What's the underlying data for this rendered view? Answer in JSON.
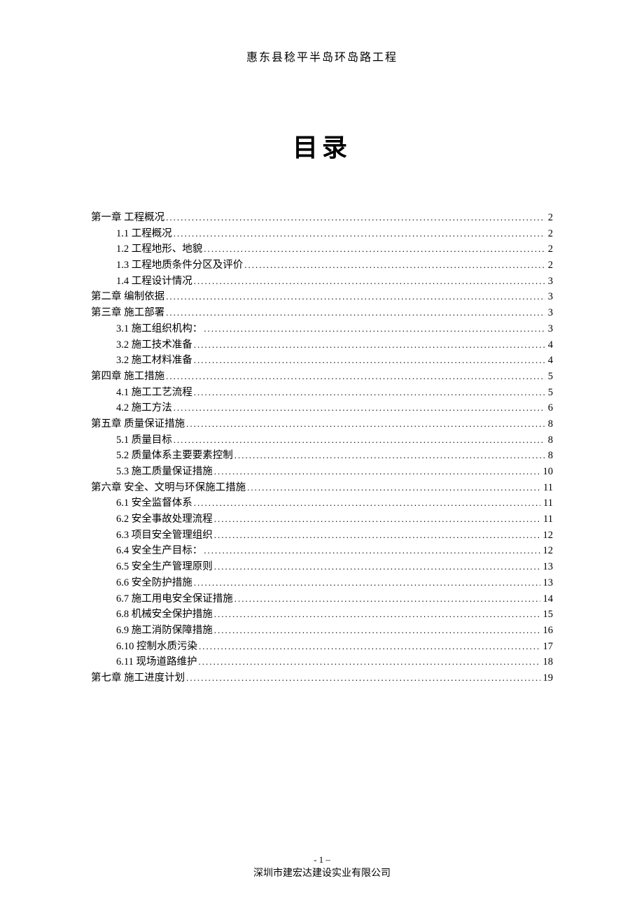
{
  "header": "惠东县稔平半岛环岛路工程",
  "title": "目录",
  "footer": {
    "page_number": "- 1 –",
    "company": "深圳市建宏达建设实业有限公司"
  },
  "toc": [
    {
      "label": "第一章   工程概况",
      "page": "2",
      "indent": false
    },
    {
      "label": "1.1 工程概况",
      "page": "2",
      "indent": true
    },
    {
      "label": "1.2 工程地形、地貌",
      "page": "2",
      "indent": true
    },
    {
      "label": "1.3 工程地质条件分区及评价",
      "page": "2",
      "indent": true
    },
    {
      "label": "1.4 工程设计情况",
      "page": "3",
      "indent": true
    },
    {
      "label": "第二章 编制依据",
      "page": "3",
      "indent": false
    },
    {
      "label": "第三章 施工部署",
      "page": "3",
      "indent": false
    },
    {
      "label": "3.1 施工组织机构：",
      "page": "3",
      "indent": true
    },
    {
      "label": "3.2 施工技术准备",
      "page": "4",
      "indent": true
    },
    {
      "label": "3.2 施工材料准备",
      "page": "4",
      "indent": true
    },
    {
      "label": "第四章   施工措施",
      "page": "5",
      "indent": false
    },
    {
      "label": "4.1 施工工艺流程",
      "page": "5",
      "indent": true
    },
    {
      "label": "4.2 施工方法",
      "page": "6",
      "indent": true
    },
    {
      "label": "第五章   质量保证措施",
      "page": "8",
      "indent": false
    },
    {
      "label": "5.1 质量目标",
      "page": "8",
      "indent": true
    },
    {
      "label": "5.2 质量体系主要要素控制",
      "page": "8",
      "indent": true
    },
    {
      "label": "5.3 施工质量保证措施",
      "page": "10",
      "indent": true
    },
    {
      "label": "第六章   安全、文明与环保施工措施",
      "page": "11",
      "indent": false
    },
    {
      "label": "6.1 安全监督体系",
      "page": "11",
      "indent": true
    },
    {
      "label": "6.2 安全事故处理流程",
      "page": "11",
      "indent": true
    },
    {
      "label": "6.3 项目安全管理组织",
      "page": "12",
      "indent": true
    },
    {
      "label": "6.4 安全生产目标：",
      "page": "12",
      "indent": true
    },
    {
      "label": "6.5 安全生产管理原则",
      "page": "13",
      "indent": true
    },
    {
      "label": "6.6 安全防护措施",
      "page": "13",
      "indent": true
    },
    {
      "label": "6.7 施工用电安全保证措施",
      "page": "14",
      "indent": true
    },
    {
      "label": "6.8 机械安全保护措施",
      "page": "15",
      "indent": true
    },
    {
      "label": "6.9 施工消防保障措施",
      "page": "16",
      "indent": true
    },
    {
      "label": "6.10 控制水质污染",
      "page": "17",
      "indent": true
    },
    {
      "label": "6.11 现场道路维护",
      "page": "18",
      "indent": true
    },
    {
      "label": "第七章   施工进度计划",
      "page": "19",
      "indent": false
    }
  ]
}
